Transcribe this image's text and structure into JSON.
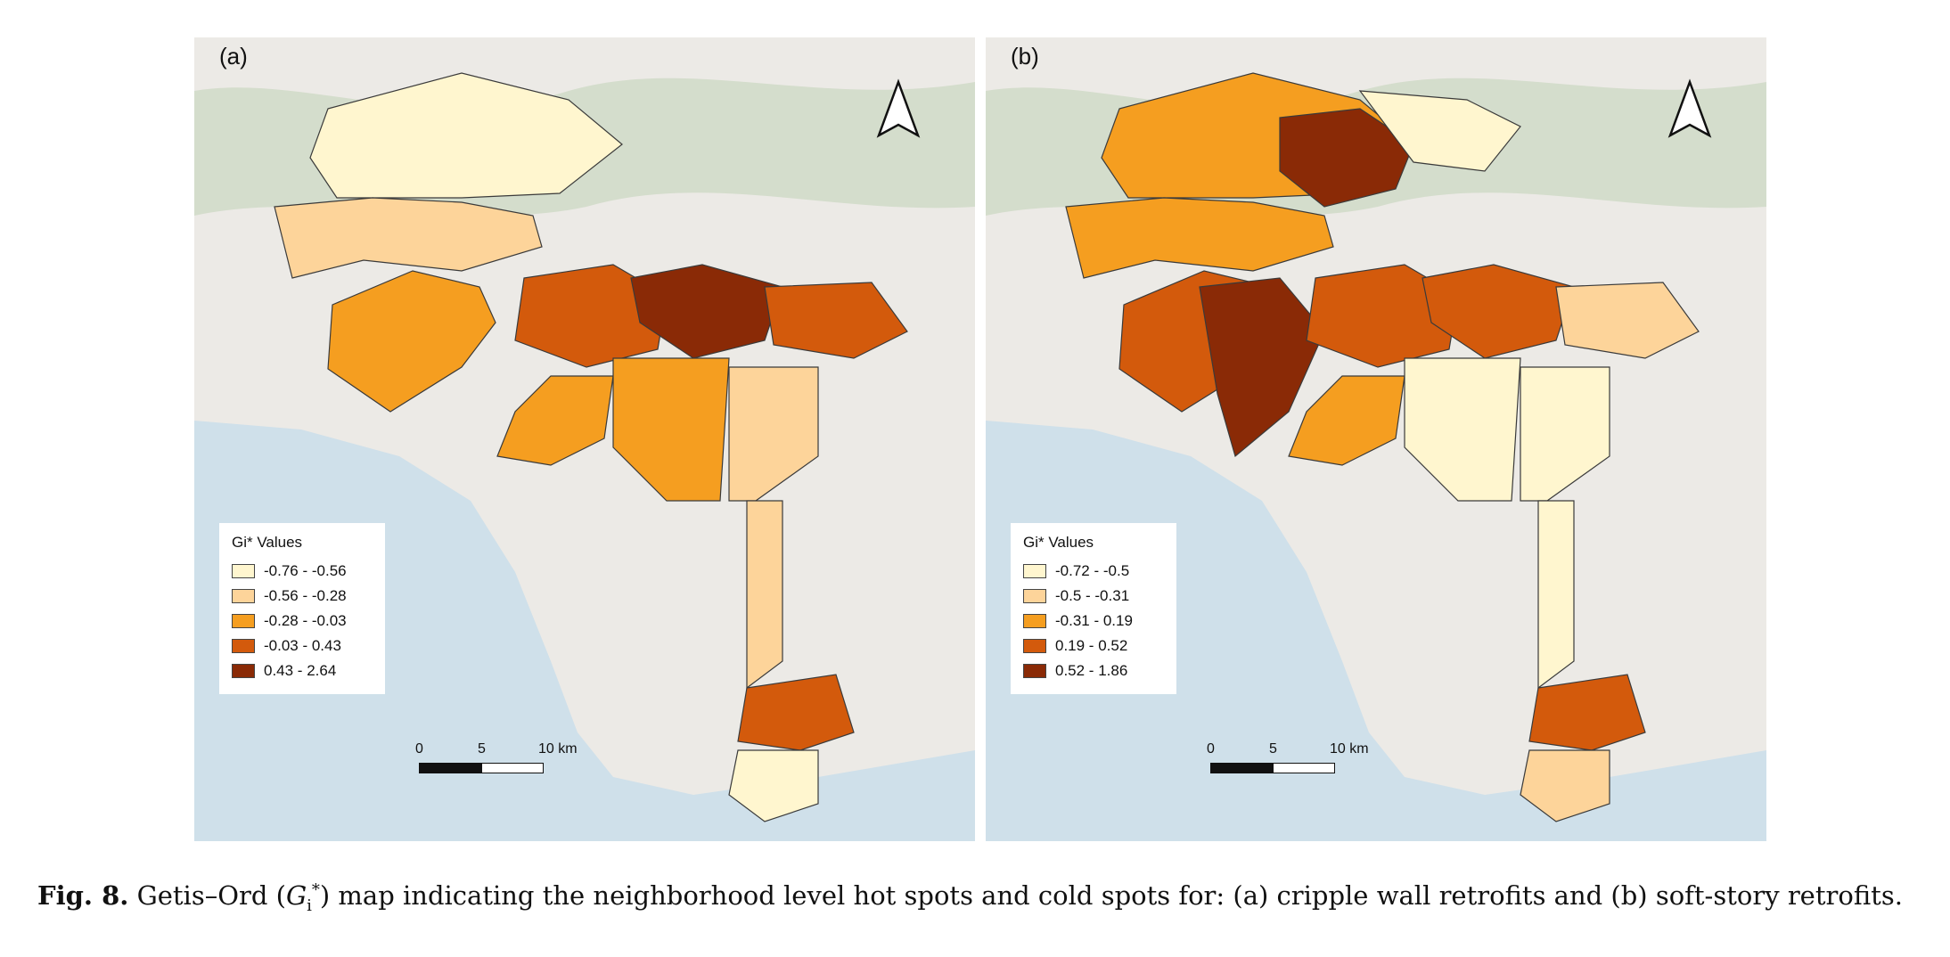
{
  "figure": {
    "panels": [
      {
        "id": "a",
        "label": "(a)",
        "legend": {
          "title": "Gi* Values",
          "classes": [
            {
              "label": "-0.76 - -0.56",
              "color": "#fff6cf"
            },
            {
              "label": "-0.56 - -0.28",
              "color": "#fdd49a"
            },
            {
              "label": "-0.28 - -0.03",
              "color": "#f59e20"
            },
            {
              "label": "-0.03 - 0.43",
              "color": "#d35a0c"
            },
            {
              "label": "0.43 - 2.64",
              "color": "#8a2a06"
            }
          ]
        },
        "scale": {
          "ticks": [
            "0",
            "5",
            "10 km"
          ]
        }
      },
      {
        "id": "b",
        "label": "(b)",
        "legend": {
          "title": "Gi* Values",
          "classes": [
            {
              "label": "-0.72 - -0.5",
              "color": "#fff6cf"
            },
            {
              "label": "-0.5 - -0.31",
              "color": "#fdd49a"
            },
            {
              "label": "-0.31 - 0.19",
              "color": "#f59e20"
            },
            {
              "label": "0.19 - 0.52",
              "color": "#d35a0c"
            },
            {
              "label": "0.52 - 1.86",
              "color": "#8a2a06"
            }
          ]
        },
        "scale": {
          "ticks": [
            "0",
            "5",
            "10 km"
          ]
        }
      }
    ],
    "north_arrow_icon": "north-arrow-icon",
    "basemap_colors": {
      "land": "#eceae6",
      "ocean": "#cfe0ea",
      "hills": "#cad7c0"
    }
  },
  "caption": {
    "fig_label": "Fig. 8.",
    "text_before": "Getis–Ord (",
    "symbol": "G",
    "symbol_sub": "i",
    "symbol_sup": "*",
    "text_after": ") map indicating the neighborhood level hot spots and cold spots for: (a) cripple wall retrofits and (b) soft-story retrofits."
  }
}
